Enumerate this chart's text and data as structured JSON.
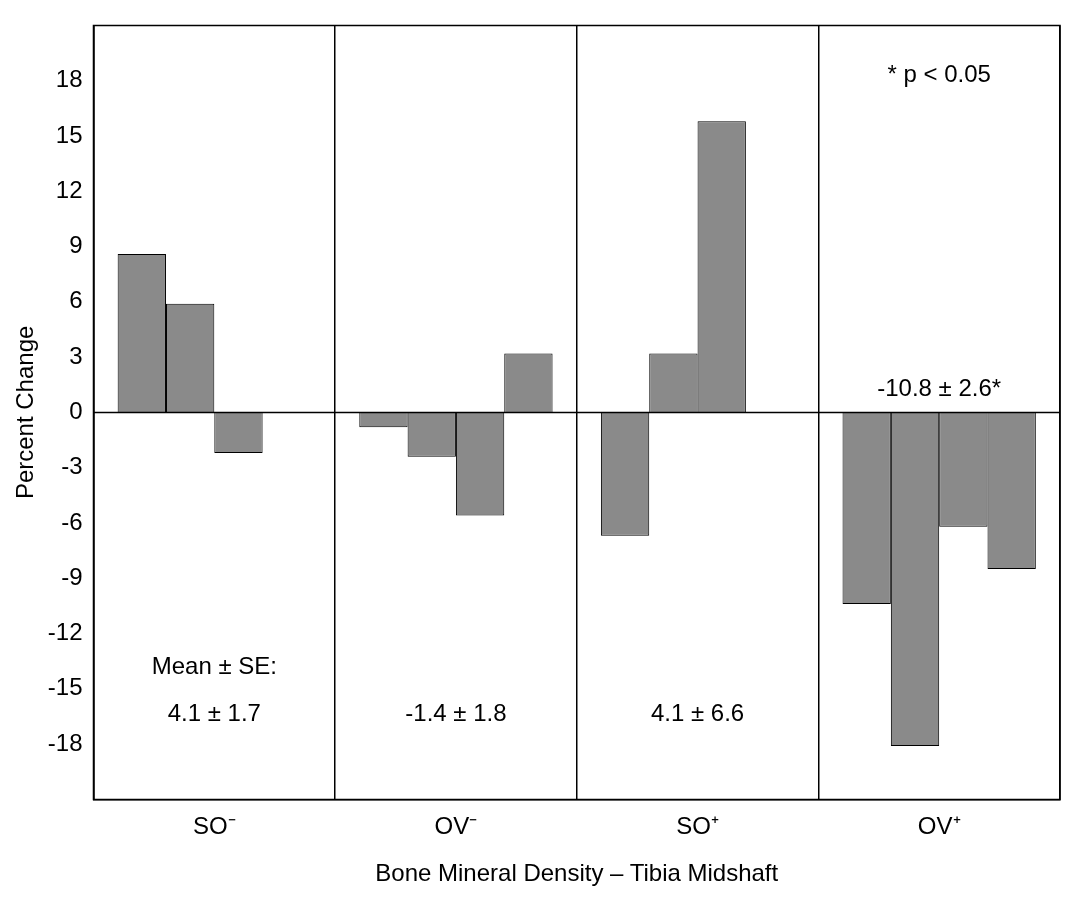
{
  "chart_data": {
    "type": "bar",
    "xlabel": "Bone Mineral Density – Tibia Midshaft",
    "ylabel": "Percent Change",
    "categories": [
      "SO⁻",
      "OV⁻",
      "SO⁺",
      "OV⁺"
    ],
    "series": [
      {
        "color": "#8a8a8a",
        "values": [
          8.6,
          -0.8,
          -6.7,
          -10.4
        ]
      },
      {
        "color": "#8a8a8a",
        "values": [
          5.9,
          -2.4,
          3.2,
          -18.1
        ]
      },
      {
        "color": "#8a8a8a",
        "values": [
          -2.2,
          -5.6,
          15.8,
          -6.2
        ]
      },
      {
        "color": "#8a8a8a",
        "values": [
          null,
          3.2,
          null,
          -8.5
        ]
      }
    ],
    "ylim": [
      -21,
      21
    ],
    "yticks": [
      -18,
      -15,
      -12,
      -9,
      -6,
      -3,
      0,
      3,
      6,
      9,
      12,
      15,
      18
    ],
    "grid": "x",
    "legend": false,
    "ref_lines": [
      {
        "axis": "y",
        "value": 0,
        "color": "#000000"
      }
    ],
    "annotations": [
      "Mean ± SE:",
      "4.1 ± 1.7",
      "-1.4 ± 1.8",
      "4.1 ± 6.6",
      "-10.8 ± 2.6*",
      "* p < 0.05"
    ]
  }
}
